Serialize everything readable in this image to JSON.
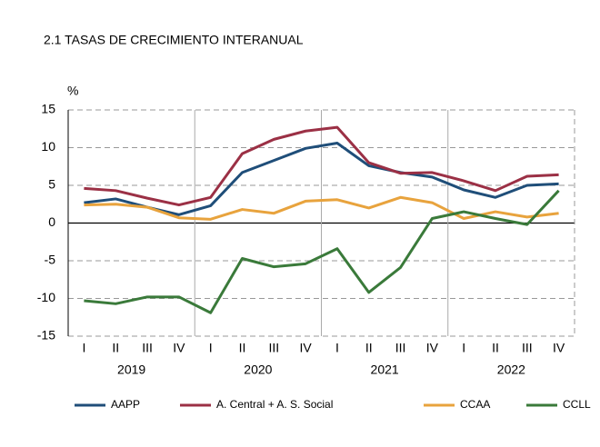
{
  "chart_data": {
    "type": "line",
    "title": "2.1 TASAS DE CRECIMIENTO INTERANUAL",
    "y_label": "%",
    "categories": [
      "I",
      "II",
      "III",
      "IV",
      "I",
      "II",
      "III",
      "IV",
      "I",
      "II",
      "III",
      "IV",
      "I",
      "II",
      "III",
      "IV"
    ],
    "years": [
      "2019",
      "2020",
      "2021",
      "2022"
    ],
    "series": [
      {
        "name": "AAPP",
        "color": "#1f4e79",
        "values": [
          2.7,
          3.2,
          2.1,
          1.1,
          2.3,
          6.7,
          8.3,
          9.9,
          10.6,
          7.6,
          6.7,
          6.1,
          4.4,
          3.4,
          5.0,
          5.2
        ]
      },
      {
        "name": "A. Central + A. S. Social",
        "color": "#9b3045",
        "values": [
          4.6,
          4.3,
          3.3,
          2.4,
          3.4,
          9.2,
          11.1,
          12.2,
          12.7,
          8.0,
          6.6,
          6.7,
          5.6,
          4.3,
          6.2,
          6.4
        ]
      },
      {
        "name": "CCAA",
        "color": "#e8a33d",
        "values": [
          2.4,
          2.5,
          2.1,
          0.7,
          0.5,
          1.8,
          1.3,
          2.9,
          3.1,
          2.0,
          3.4,
          2.7,
          0.6,
          1.5,
          0.8,
          1.3
        ]
      },
      {
        "name": "CCLL",
        "color": "#3a7a3a",
        "values": [
          -10.3,
          -10.7,
          -9.8,
          -9.8,
          -11.9,
          -4.7,
          -5.8,
          -5.4,
          -3.4,
          -9.2,
          -5.9,
          0.6,
          1.5,
          0.6,
          -0.2,
          4.3
        ]
      }
    ],
    "ylim": [
      -15,
      15
    ],
    "yticks": [
      -15,
      -10,
      -5,
      0,
      5,
      10,
      15
    ],
    "grid": true,
    "legend": "bottom"
  }
}
